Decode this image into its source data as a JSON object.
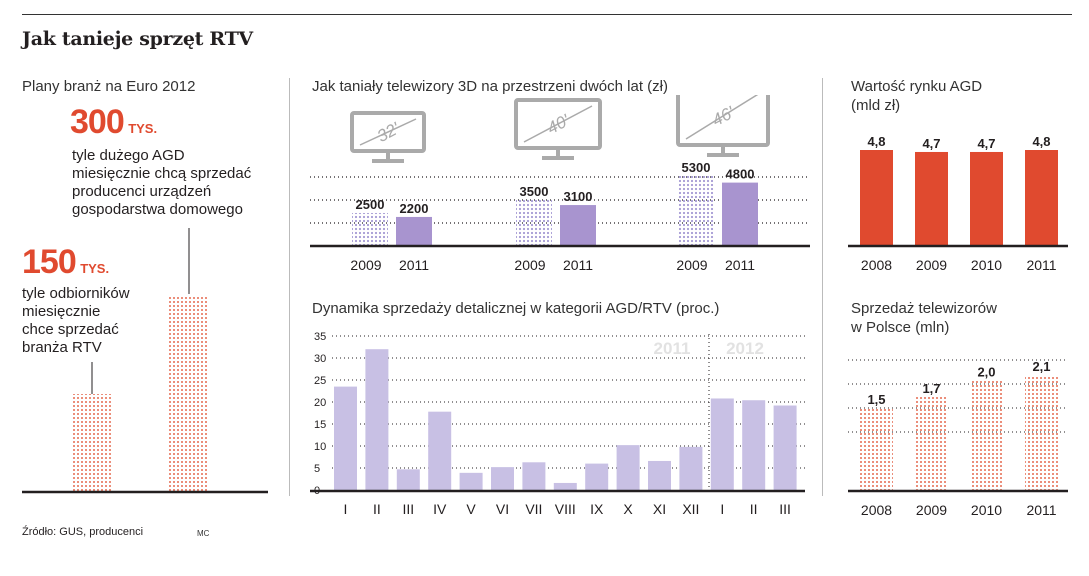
{
  "title": "Jak tanieje sprzęt RTV",
  "source": "Źródło: GUS, producenci",
  "author": "MC",
  "colors": {
    "red": "#e04a2f",
    "purple": "#a894cf",
    "light_purple": "#c8c0e4",
    "dotted_purple": "#a59ad4",
    "dotted_red": "#e56a4f"
  },
  "euro": {
    "heading": "Plany branż na Euro 2012",
    "stat1": {
      "value": "300",
      "unit": "TYS.",
      "lines": [
        "tyle dużego AGD",
        "miesięcznie chcą sprzedać",
        "producenci urządzeń",
        "gospodarstwa domowego"
      ]
    },
    "stat2": {
      "value": "150",
      "unit": "TYS.",
      "lines": [
        "tyle odbiorników",
        "miesięcznie",
        "chce sprzedać",
        "branża RTV"
      ]
    }
  },
  "tv3d": {
    "heading": "Jak taniały telewizory 3D na przestrzeni dwóch lat (zł)"
  },
  "agd": {
    "heading_lines": [
      "Wartość rynku AGD",
      "(mld zł)"
    ]
  },
  "retail": {
    "heading": "Dynamika sprzedaży detalicznej w kategorii AGD/RTV (proc.)"
  },
  "tvsales": {
    "heading_lines": [
      "Sprzedaż telewizorów",
      "w Polsce (mln)"
    ]
  },
  "chart_data": [
    {
      "type": "bar",
      "id": "euro",
      "categories": [
        "RTV",
        "AGD"
      ],
      "values": [
        150,
        300
      ],
      "unit": "tys.",
      "title": "Plany branż na Euro 2012"
    },
    {
      "type": "bar",
      "id": "tv3d",
      "title": "Jak taniały telewizory 3D na przestrzeni dwóch lat (zł)",
      "groups": [
        {
          "size": "32'",
          "x": [
            "2009",
            "2011"
          ],
          "values": [
            2500,
            2200
          ],
          "labels": [
            "2500",
            "2200"
          ]
        },
        {
          "size": "40'",
          "x": [
            "2009",
            "2011"
          ],
          "values": [
            3500,
            3100
          ],
          "labels": [
            "3500",
            "3100"
          ]
        },
        {
          "size": "46'",
          "x": [
            "2009",
            "2011"
          ],
          "values": [
            5300,
            4800
          ],
          "labels": [
            "5300",
            "4800"
          ]
        }
      ]
    },
    {
      "type": "bar",
      "id": "agd",
      "title": "Wartość rynku AGD (mld zł)",
      "categories": [
        "2008",
        "2009",
        "2010",
        "2011"
      ],
      "values": [
        4.8,
        4.7,
        4.7,
        4.8
      ],
      "labels": [
        "4,8",
        "4,7",
        "4,7",
        "4,8"
      ]
    },
    {
      "type": "bar",
      "id": "retail",
      "title": "Dynamika sprzedaży detalicznej w kategorii AGD/RTV (proc.)",
      "categories": [
        "I",
        "II",
        "III",
        "IV",
        "V",
        "VI",
        "VII",
        "VIII",
        "IX",
        "X",
        "XI",
        "XII",
        "I",
        "II",
        "III"
      ],
      "values": [
        23.5,
        32,
        4.7,
        17.8,
        3.9,
        5.2,
        6.3,
        1.6,
        6,
        10.2,
        6.6,
        9.8,
        20.8,
        20.4,
        19.2
      ],
      "period_labels": [
        "2011",
        "2012"
      ],
      "yticks": [
        0,
        5,
        10,
        15,
        20,
        25,
        30,
        35
      ],
      "ylim": [
        0,
        35
      ]
    },
    {
      "type": "bar",
      "id": "tvsales",
      "title": "Sprzedaż telewizorów w Polsce (mln)",
      "categories": [
        "2008",
        "2009",
        "2010",
        "2011"
      ],
      "values": [
        1.5,
        1.7,
        2.0,
        2.1
      ],
      "labels": [
        "1,5",
        "1,7",
        "2,0",
        "2,1"
      ]
    }
  ]
}
